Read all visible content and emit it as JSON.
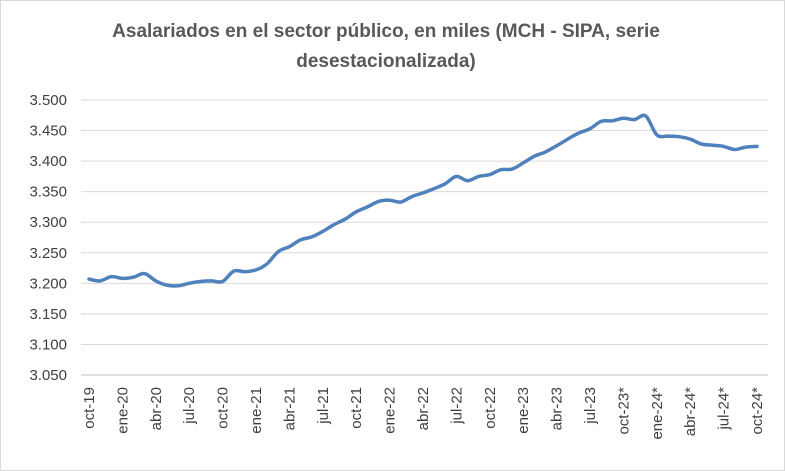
{
  "chart_data": {
    "type": "line",
    "title": "Asalariados en el sector público, en miles (MCH - SIPA, serie desestacionalizada)",
    "xlabel": "",
    "ylabel": "",
    "ylim": [
      3050,
      3500
    ],
    "yticks": [
      3050,
      3100,
      3150,
      3200,
      3250,
      3300,
      3350,
      3400,
      3450,
      3500
    ],
    "ytick_labels": [
      "3.050",
      "3.100",
      "3.150",
      "3.200",
      "3.250",
      "3.300",
      "3.350",
      "3.400",
      "3.450",
      "3.500"
    ],
    "grid": true,
    "legend": "none",
    "line_color": "#4f81bd",
    "xtick_labels": [
      "oct-19",
      "ene-20",
      "abr-20",
      "jul-20",
      "oct-20",
      "ene-21",
      "abr-21",
      "jul-21",
      "oct-21",
      "ene-22",
      "abr-22",
      "jul-22",
      "oct-22",
      "ene-23",
      "abr-23",
      "jul-23",
      "oct-23*",
      "ene-24*",
      "abr-24*",
      "jul-24*",
      "oct-24*"
    ],
    "x": [
      "oct-19",
      "nov-19",
      "dic-19",
      "ene-20",
      "feb-20",
      "mar-20",
      "abr-20",
      "may-20",
      "jun-20",
      "jul-20",
      "ago-20",
      "sep-20",
      "oct-20",
      "nov-20",
      "dic-20",
      "ene-21",
      "feb-21",
      "mar-21",
      "abr-21",
      "may-21",
      "jun-21",
      "jul-21",
      "ago-21",
      "sep-21",
      "oct-21",
      "nov-21",
      "dic-21",
      "ene-22",
      "feb-22",
      "mar-22",
      "abr-22",
      "may-22",
      "jun-22",
      "jul-22",
      "ago-22",
      "sep-22",
      "oct-22",
      "nov-22",
      "dic-22",
      "ene-23",
      "feb-23",
      "mar-23",
      "abr-23",
      "may-23",
      "jun-23",
      "jul-23",
      "ago-23",
      "sep-23",
      "oct-23*",
      "nov-23*",
      "dic-23*",
      "ene-24*",
      "feb-24*",
      "mar-24*",
      "abr-24*",
      "may-24*",
      "jun-24*",
      "jul-24*",
      "ago-24*",
      "sep-24*",
      "oct-24*"
    ],
    "values": [
      3207,
      3204,
      3211,
      3208,
      3210,
      3216,
      3204,
      3197,
      3196,
      3200,
      3203,
      3204,
      3203,
      3220,
      3219,
      3222,
      3232,
      3252,
      3260,
      3271,
      3276,
      3285,
      3296,
      3305,
      3317,
      3325,
      3334,
      3336,
      3333,
      3342,
      3348,
      3355,
      3363,
      3375,
      3368,
      3375,
      3378,
      3386,
      3387,
      3397,
      3408,
      3415,
      3425,
      3436,
      3446,
      3453,
      3465,
      3466,
      3470,
      3468,
      3474,
      3443,
      3441,
      3440,
      3436,
      3428,
      3426,
      3424,
      3419,
      3423,
      3424
    ]
  }
}
